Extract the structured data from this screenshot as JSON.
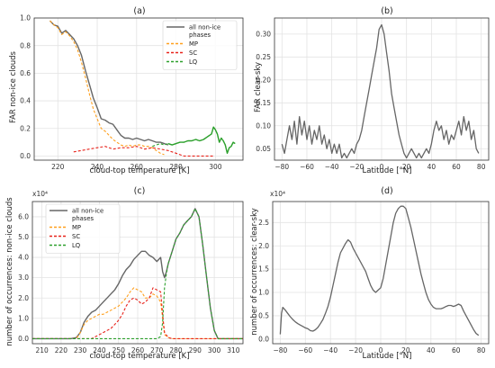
{
  "chart_data": [
    {
      "panel": "(a)",
      "type": "line",
      "xlabel": "cloud-top temperature [K]",
      "ylabel": "FAR non-ice clouds",
      "xlim": [
        208,
        314
      ],
      "ylim": [
        -0.03,
        1.0
      ],
      "xticks": [
        "220",
        "240",
        "260",
        "280",
        "300"
      ],
      "yticks": [
        "0.0",
        "0.2",
        "0.4",
        "0.6",
        "0.8",
        "1.0"
      ],
      "grid": true,
      "legend": "top-right",
      "series": [
        {
          "name": "all non-ice phases",
          "color": "#666666",
          "width": 1.4,
          "dash": "",
          "x": [
            216,
            218,
            220,
            222,
            224,
            226,
            228,
            230,
            232,
            234,
            236,
            238,
            240,
            242,
            244,
            246,
            248,
            250,
            252,
            254,
            256,
            258,
            260,
            262,
            264,
            266,
            268,
            270,
            272,
            274,
            276
          ],
          "y": [
            0.98,
            0.95,
            0.94,
            0.89,
            0.91,
            0.88,
            0.85,
            0.8,
            0.73,
            0.62,
            0.52,
            0.42,
            0.35,
            0.27,
            0.26,
            0.24,
            0.23,
            0.19,
            0.15,
            0.13,
            0.13,
            0.12,
            0.13,
            0.12,
            0.11,
            0.12,
            0.11,
            0.1,
            0.1,
            0.09,
            0.08
          ]
        },
        {
          "name": "MP",
          "color": "#ff9f1c",
          "width": 1.1,
          "dash": "3,2",
          "x": [
            216,
            218,
            220,
            222,
            224,
            226,
            228,
            230,
            232,
            234,
            236,
            238,
            240,
            242,
            244,
            246,
            248,
            250,
            252,
            254,
            256,
            258,
            260,
            262,
            264,
            266,
            268,
            270,
            272,
            274
          ],
          "y": [
            0.98,
            0.95,
            0.93,
            0.88,
            0.9,
            0.87,
            0.83,
            0.77,
            0.68,
            0.57,
            0.45,
            0.34,
            0.27,
            0.2,
            0.18,
            0.15,
            0.12,
            0.1,
            0.08,
            0.07,
            0.08,
            0.07,
            0.08,
            0.08,
            0.07,
            0.07,
            0.06,
            0.04,
            0.02,
            0.01
          ]
        },
        {
          "name": "SC",
          "color": "#e8231b",
          "width": 1.1,
          "dash": "3,2",
          "x": [
            228,
            232,
            236,
            240,
            244,
            248,
            252,
            256,
            260,
            264,
            268,
            272,
            276,
            280,
            284,
            288,
            292,
            296,
            299
          ],
          "y": [
            0.03,
            0.04,
            0.05,
            0.06,
            0.07,
            0.05,
            0.06,
            0.06,
            0.07,
            0.05,
            0.06,
            0.05,
            0.04,
            0.02,
            0.0,
            0.0,
            0.0,
            0.0,
            0.0
          ]
        },
        {
          "name": "LQ",
          "color": "#2ca02c",
          "width": 1.1,
          "dash": "3,2",
          "x": [
            268,
            270,
            272,
            274,
            276,
            278,
            280,
            282,
            284,
            286,
            288,
            290,
            292,
            294,
            296,
            298,
            299,
            300,
            301,
            302,
            303,
            304,
            305,
            306,
            307,
            308,
            309,
            310
          ],
          "y": [
            0.07,
            0.08,
            0.09,
            0.08,
            0.09,
            0.08,
            0.09,
            0.1,
            0.1,
            0.11,
            0.11,
            0.12,
            0.11,
            0.12,
            0.14,
            0.16,
            0.21,
            0.19,
            0.16,
            0.1,
            0.13,
            0.11,
            0.08,
            0.02,
            0.06,
            0.07,
            0.1,
            0.09
          ]
        },
        {
          "name": "",
          "color": "#2ca02c",
          "width": 1.4,
          "dash": "",
          "x": [
            276,
            278,
            280,
            282,
            284,
            286,
            288,
            290,
            292,
            294,
            296,
            298,
            299,
            300,
            301,
            302,
            303,
            304,
            305,
            306,
            307,
            308,
            309,
            310
          ],
          "y": [
            0.09,
            0.08,
            0.09,
            0.1,
            0.1,
            0.11,
            0.11,
            0.12,
            0.11,
            0.12,
            0.14,
            0.16,
            0.21,
            0.19,
            0.16,
            0.1,
            0.13,
            0.11,
            0.08,
            0.02,
            0.06,
            0.07,
            0.1,
            0.09
          ]
        }
      ],
      "legend_entries": [
        {
          "label_lines": [
            "all non-ice",
            "phases"
          ],
          "color": "#666666",
          "dash": ""
        },
        {
          "label_lines": [
            "MP"
          ],
          "color": "#ff9f1c",
          "dash": "3,2"
        },
        {
          "label_lines": [
            "SC"
          ],
          "color": "#e8231b",
          "dash": "3,2"
        },
        {
          "label_lines": [
            "LQ"
          ],
          "color": "#2ca02c",
          "dash": "3,2"
        }
      ]
    },
    {
      "panel": "(b)",
      "type": "line",
      "xlabel": "Latitude [°N]",
      "ylabel": "FAR clear-sky",
      "xlim": [
        -86,
        86
      ],
      "ylim": [
        0.025,
        0.335
      ],
      "xticks": [
        "−80",
        "−60",
        "−40",
        "−20",
        "0",
        "20",
        "40",
        "60",
        "80"
      ],
      "yticks": [
        "0.05",
        "0.10",
        "0.15",
        "0.20",
        "0.25",
        "0.30"
      ],
      "grid": true,
      "series": [
        {
          "name": "",
          "color": "#666666",
          "width": 1.3,
          "dash": "",
          "x": [
            -80,
            -78,
            -76,
            -74,
            -72,
            -70,
            -68,
            -66,
            -64,
            -62,
            -60,
            -58,
            -56,
            -54,
            -52,
            -50,
            -48,
            -46,
            -44,
            -42,
            -40,
            -38,
            -36,
            -34,
            -32,
            -30,
            -28,
            -26,
            -24,
            -22,
            -20,
            -18,
            -16,
            -14,
            -12,
            -10,
            -8,
            -6,
            -4,
            -2,
            0,
            2,
            4,
            6,
            8,
            10,
            12,
            14,
            16,
            18,
            20,
            22,
            24,
            26,
            28,
            30,
            32,
            34,
            36,
            38,
            40,
            42,
            44,
            46,
            48,
            50,
            52,
            54,
            56,
            58,
            60,
            62,
            64,
            66,
            68,
            70,
            72,
            74,
            76,
            78
          ],
          "y": [
            0.06,
            0.04,
            0.07,
            0.1,
            0.07,
            0.11,
            0.06,
            0.12,
            0.08,
            0.11,
            0.07,
            0.1,
            0.06,
            0.09,
            0.07,
            0.1,
            0.06,
            0.08,
            0.05,
            0.07,
            0.04,
            0.06,
            0.04,
            0.06,
            0.03,
            0.04,
            0.03,
            0.04,
            0.05,
            0.04,
            0.06,
            0.07,
            0.09,
            0.12,
            0.15,
            0.18,
            0.21,
            0.24,
            0.27,
            0.31,
            0.32,
            0.3,
            0.26,
            0.22,
            0.17,
            0.14,
            0.11,
            0.08,
            0.06,
            0.04,
            0.03,
            0.04,
            0.05,
            0.04,
            0.03,
            0.04,
            0.03,
            0.04,
            0.05,
            0.04,
            0.06,
            0.09,
            0.11,
            0.09,
            0.1,
            0.07,
            0.09,
            0.06,
            0.08,
            0.07,
            0.09,
            0.11,
            0.08,
            0.12,
            0.09,
            0.11,
            0.07,
            0.09,
            0.05,
            0.04
          ]
        }
      ]
    },
    {
      "panel": "(c)",
      "type": "line",
      "xlabel": "cloud-top temperature [K]",
      "ylabel": "number of occurrences: non-ice clouds",
      "multiplier": "x10⁴",
      "xlim": [
        205,
        315
      ],
      "ylim": [
        -0.25,
        6.75
      ],
      "xticks": [
        "210",
        "220",
        "230",
        "240",
        "250",
        "260",
        "270",
        "280",
        "290",
        "300",
        "310"
      ],
      "yticks": [
        "0.0",
        "1.0",
        "2.0",
        "3.0",
        "4.0",
        "5.0",
        "6.0"
      ],
      "grid": true,
      "legend": "top-left",
      "series": [
        {
          "name": "all non-ice phases",
          "color": "#666666",
          "width": 1.4,
          "dash": "",
          "x": [
            205,
            225,
            228,
            230,
            232,
            234,
            236,
            238,
            240,
            242,
            244,
            246,
            248,
            250,
            252,
            254,
            256,
            258,
            260,
            262,
            264,
            266,
            268,
            270,
            272,
            273,
            274,
            275,
            276,
            278,
            280,
            282,
            284,
            286,
            288,
            290,
            292,
            294,
            296,
            298,
            300,
            302,
            315
          ],
          "y": [
            0.0,
            0.0,
            0.05,
            0.3,
            0.8,
            1.1,
            1.3,
            1.4,
            1.6,
            1.8,
            2.0,
            2.2,
            2.4,
            2.7,
            3.1,
            3.4,
            3.6,
            3.9,
            4.1,
            4.3,
            4.3,
            4.1,
            4.0,
            3.8,
            4.0,
            3.3,
            3.0,
            3.3,
            3.7,
            4.3,
            4.9,
            5.2,
            5.6,
            5.8,
            6.0,
            6.4,
            6.0,
            4.6,
            3.0,
            1.5,
            0.4,
            0.0,
            0.0
          ]
        },
        {
          "name": "MP",
          "color": "#ff9f1c",
          "width": 1.1,
          "dash": "3,2",
          "x": [
            205,
            228,
            230,
            232,
            234,
            236,
            238,
            240,
            242,
            244,
            246,
            248,
            250,
            252,
            254,
            256,
            258,
            260,
            262,
            264,
            266,
            268,
            270,
            272,
            273,
            274,
            276,
            278,
            315
          ],
          "y": [
            0.0,
            0.0,
            0.3,
            0.7,
            0.9,
            1.0,
            1.1,
            1.2,
            1.2,
            1.3,
            1.4,
            1.5,
            1.6,
            1.8,
            2.0,
            2.3,
            2.5,
            2.4,
            2.3,
            2.0,
            2.0,
            2.2,
            2.1,
            1.8,
            1.0,
            0.2,
            0.05,
            0.0,
            0.0
          ]
        },
        {
          "name": "SC",
          "color": "#e8231b",
          "width": 1.1,
          "dash": "3,2",
          "x": [
            205,
            236,
            238,
            240,
            242,
            244,
            246,
            248,
            250,
            252,
            254,
            256,
            258,
            260,
            262,
            264,
            266,
            268,
            270,
            272,
            273,
            274,
            276,
            278,
            315
          ],
          "y": [
            0.0,
            0.0,
            0.1,
            0.2,
            0.3,
            0.4,
            0.5,
            0.7,
            0.9,
            1.2,
            1.6,
            1.9,
            2.0,
            1.9,
            1.7,
            1.8,
            2.0,
            2.5,
            2.4,
            2.3,
            1.2,
            0.3,
            0.05,
            0.0,
            0.0
          ]
        },
        {
          "name": "LQ",
          "color": "#2ca02c",
          "width": 1.1,
          "dash": "3,2",
          "x": [
            205,
            270,
            272,
            273,
            274,
            275,
            276,
            278,
            280,
            282,
            284,
            286,
            288,
            290,
            292,
            294,
            296,
            298,
            300,
            302,
            315
          ],
          "y": [
            0.0,
            0.0,
            0.1,
            0.8,
            2.5,
            3.2,
            3.7,
            4.3,
            4.9,
            5.2,
            5.6,
            5.8,
            6.0,
            6.4,
            6.0,
            4.6,
            3.0,
            1.5,
            0.4,
            0.0,
            0.0
          ]
        }
      ],
      "legend_entries": [
        {
          "label_lines": [
            "all non-ice",
            "phases"
          ],
          "color": "#666666",
          "dash": ""
        },
        {
          "label_lines": [
            "MP"
          ],
          "color": "#ff9f1c",
          "dash": "3,2"
        },
        {
          "label_lines": [
            "SC"
          ],
          "color": "#e8231b",
          "dash": "3,2"
        },
        {
          "label_lines": [
            "LQ"
          ],
          "color": "#2ca02c",
          "dash": "3,2"
        }
      ]
    },
    {
      "panel": "(d)",
      "type": "line",
      "xlabel": "Latitude [°N]",
      "ylabel": "number of occurrences: clear-sky",
      "multiplier": "x10⁴",
      "xlim": [
        -86,
        86
      ],
      "ylim": [
        -0.1,
        2.95
      ],
      "xticks": [
        "−80",
        "−60",
        "−40",
        "−20",
        "0",
        "20",
        "40",
        "60",
        "80"
      ],
      "yticks": [
        "0.0",
        "0.5",
        "1.0",
        "1.5",
        "2.0",
        "2.5"
      ],
      "grid": true,
      "series": [
        {
          "name": "",
          "color": "#666666",
          "width": 1.3,
          "dash": "",
          "x": [
            -80,
            -79,
            -78,
            -76,
            -74,
            -72,
            -70,
            -68,
            -66,
            -64,
            -62,
            -60,
            -58,
            -56,
            -54,
            -52,
            -50,
            -48,
            -46,
            -44,
            -42,
            -40,
            -38,
            -36,
            -34,
            -32,
            -30,
            -28,
            -26,
            -24,
            -22,
            -20,
            -18,
            -16,
            -14,
            -12,
            -10,
            -8,
            -6,
            -4,
            -2,
            0,
            2,
            4,
            6,
            8,
            10,
            12,
            14,
            16,
            18,
            20,
            22,
            24,
            26,
            28,
            30,
            32,
            34,
            36,
            38,
            40,
            42,
            44,
            46,
            48,
            50,
            52,
            54,
            56,
            58,
            60,
            62,
            64,
            66,
            68,
            70,
            72,
            74,
            76,
            78
          ],
          "y": [
            0.1,
            0.55,
            0.68,
            0.62,
            0.55,
            0.48,
            0.42,
            0.37,
            0.33,
            0.3,
            0.27,
            0.24,
            0.22,
            0.18,
            0.17,
            0.2,
            0.25,
            0.33,
            0.42,
            0.55,
            0.7,
            0.9,
            1.15,
            1.4,
            1.65,
            1.85,
            1.95,
            2.05,
            2.13,
            2.08,
            1.95,
            1.85,
            1.75,
            1.65,
            1.55,
            1.45,
            1.3,
            1.15,
            1.05,
            1.0,
            1.05,
            1.1,
            1.3,
            1.6,
            1.9,
            2.2,
            2.5,
            2.7,
            2.8,
            2.85,
            2.85,
            2.8,
            2.6,
            2.4,
            2.15,
            1.9,
            1.65,
            1.4,
            1.2,
            1.0,
            0.85,
            0.75,
            0.68,
            0.65,
            0.65,
            0.65,
            0.67,
            0.7,
            0.72,
            0.72,
            0.7,
            0.72,
            0.75,
            0.72,
            0.6,
            0.5,
            0.4,
            0.3,
            0.2,
            0.12,
            0.08
          ]
        }
      ]
    }
  ]
}
